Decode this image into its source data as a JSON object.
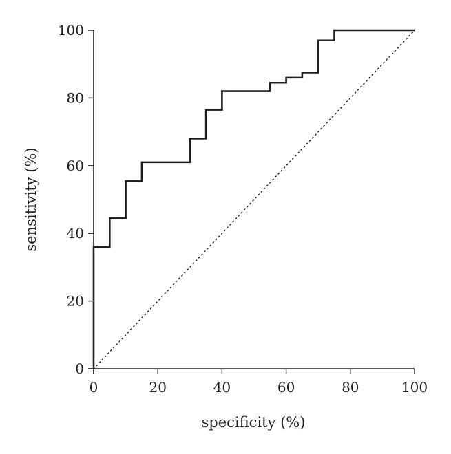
{
  "chart_data": {
    "type": "line",
    "title": "",
    "xlabel": "specificity (%)",
    "ylabel": "sensitivity (%)",
    "xlim": [
      0,
      100
    ],
    "ylim": [
      0,
      100
    ],
    "x_ticks": [
      0,
      20,
      40,
      60,
      80,
      100
    ],
    "y_ticks": [
      0,
      20,
      40,
      60,
      80,
      100
    ],
    "x_tick_labels": [
      "0",
      "20",
      "40",
      "60",
      "80",
      "100"
    ],
    "y_tick_labels": [
      "0",
      "20",
      "40",
      "60",
      "80",
      "100"
    ],
    "grid": false,
    "legend": "none",
    "series": [
      {
        "style": "step",
        "color": "#231f20",
        "x": [
          0,
          0,
          5,
          5,
          10,
          10,
          15,
          15,
          30,
          30,
          35,
          35,
          40,
          40,
          55,
          55,
          60,
          60,
          65,
          65,
          70,
          70,
          75,
          75,
          100
        ],
        "y": [
          0,
          36,
          36,
          44.5,
          44.5,
          55.5,
          55.5,
          61,
          61,
          68,
          68,
          76.5,
          76.5,
          82,
          82,
          84.5,
          84.5,
          86,
          86,
          87.5,
          87.5,
          97,
          97,
          100,
          100
        ]
      },
      {
        "style": "dotted",
        "color": "#231f20",
        "x": [
          0,
          100
        ],
        "y": [
          0,
          100
        ]
      }
    ]
  }
}
